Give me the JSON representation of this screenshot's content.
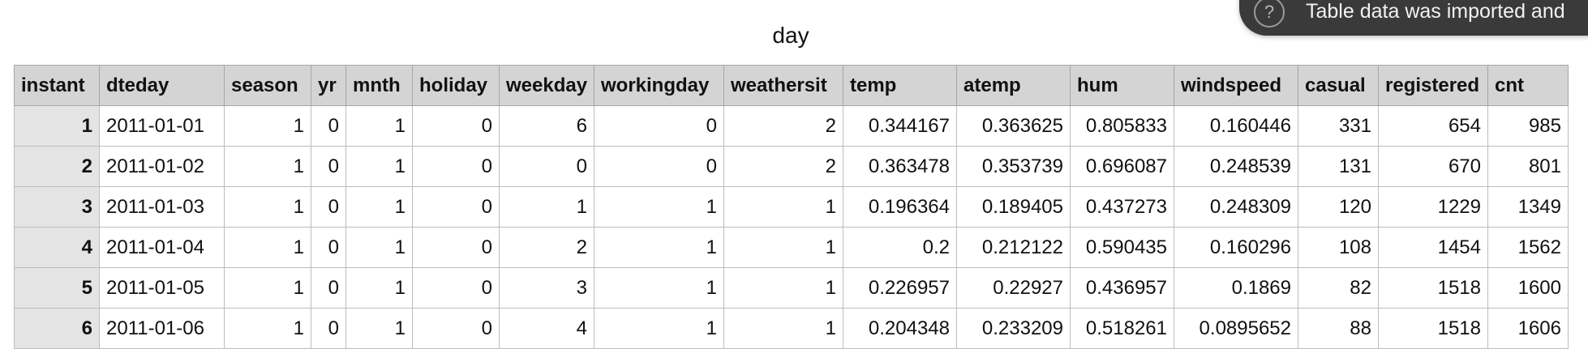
{
  "title": "day",
  "toast": {
    "icon": "question-icon",
    "icon_glyph": "?",
    "message": "Table data was imported and"
  },
  "table": {
    "columns": [
      "instant",
      "dteday",
      "season",
      "yr",
      "mnth",
      "holiday",
      "weekday",
      "workingday",
      "weathersit",
      "temp",
      "atemp",
      "hum",
      "windspeed",
      "casual",
      "registered",
      "cnt"
    ],
    "rows": [
      [
        "1",
        "2011-01-01",
        "1",
        "0",
        "1",
        "0",
        "6",
        "0",
        "2",
        "0.344167",
        "0.363625",
        "0.805833",
        "0.160446",
        "331",
        "654",
        "985"
      ],
      [
        "2",
        "2011-01-02",
        "1",
        "0",
        "1",
        "0",
        "0",
        "0",
        "2",
        "0.363478",
        "0.353739",
        "0.696087",
        "0.248539",
        "131",
        "670",
        "801"
      ],
      [
        "3",
        "2011-01-03",
        "1",
        "0",
        "1",
        "0",
        "1",
        "1",
        "1",
        "0.196364",
        "0.189405",
        "0.437273",
        "0.248309",
        "120",
        "1229",
        "1349"
      ],
      [
        "4",
        "2011-01-04",
        "1",
        "0",
        "1",
        "0",
        "2",
        "1",
        "1",
        "0.2",
        "0.212122",
        "0.590435",
        "0.160296",
        "108",
        "1454",
        "1562"
      ],
      [
        "5",
        "2011-01-05",
        "1",
        "0",
        "1",
        "0",
        "3",
        "1",
        "1",
        "0.226957",
        "0.22927",
        "0.436957",
        "0.1869",
        "82",
        "1518",
        "1600"
      ],
      [
        "6",
        "2011-01-06",
        "1",
        "0",
        "1",
        "0",
        "4",
        "1",
        "1",
        "0.204348",
        "0.233209",
        "0.518261",
        "0.0895652",
        "88",
        "1518",
        "1606"
      ]
    ]
  }
}
